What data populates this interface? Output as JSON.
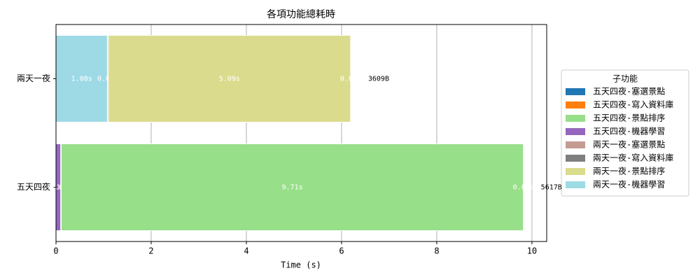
{
  "chart_data": {
    "type": "stacked-barh",
    "title": "各項功能總耗時",
    "x_label": "Time (s)",
    "categories": [
      "兩天一夜",
      "五天四夜"
    ],
    "series": [
      {
        "name": "五天四夜-塞選景點",
        "color": "#1f77b4",
        "values": [
          null,
          0.01
        ],
        "value_labels": [
          null,
          "0.01s"
        ]
      },
      {
        "name": "五天四夜-寫入資料庫",
        "color": "#ff7f0e",
        "values": [
          null,
          0.0
        ],
        "value_labels": [
          null,
          "0.00s"
        ]
      },
      {
        "name": "五天四夜-景點排序",
        "color": "#98df8a",
        "values": [
          null,
          9.71
        ],
        "value_labels": [
          null,
          "9.71s"
        ]
      },
      {
        "name": "五天四夜-機器學習",
        "color": "#9467bd",
        "values": [
          null,
          0.1
        ],
        "value_labels": [
          null,
          "0.10s"
        ]
      },
      {
        "name": "兩天一夜-塞選景點",
        "color": "#c49c94",
        "values": [
          0.02,
          null
        ],
        "value_labels": [
          "0.02s",
          null
        ]
      },
      {
        "name": "兩天一夜-寫入資料庫",
        "color": "#7f7f7f",
        "values": [
          0.0,
          null
        ],
        "value_labels": [
          "0.00s",
          null
        ]
      },
      {
        "name": "兩天一夜-景點排序",
        "color": "#dbdb8d",
        "values": [
          5.09,
          null
        ],
        "value_labels": [
          "5.09s",
          null
        ]
      },
      {
        "name": "兩天一夜-機器學習",
        "color": "#9edae5",
        "values": [
          1.08,
          null
        ],
        "value_labels": [
          "1.08s",
          null
        ]
      }
    ],
    "size_labels": [
      "3609B",
      "5617B"
    ],
    "xlim": [
      0,
      10.31
    ],
    "xticks": [
      0,
      2,
      4,
      6,
      8,
      10
    ],
    "grid": true,
    "legend_title": "子功能",
    "legend": "right"
  }
}
